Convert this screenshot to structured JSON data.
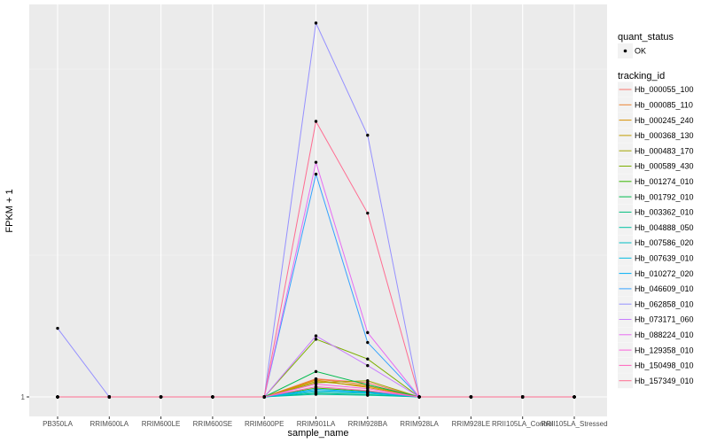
{
  "chart_data": {
    "type": "line",
    "xlabel": "sample_name",
    "ylabel": "FPKM + 1",
    "y_tick_labels": [
      {
        "value": 1,
        "label": "1"
      }
    ],
    "ylim": [
      1,
      1134
    ],
    "grid": true,
    "legend_placement": "right",
    "categories": [
      "PB350LA",
      "RRIM600LA",
      "RRIM600LE",
      "RRIM600SE",
      "RRIM600PE",
      "RRIM901LA",
      "RRIM928BA",
      "RRIM928LA",
      "RRIM928LE",
      "RRII105LA_Control",
      "RRII105LA_Stressed"
    ],
    "legend_quant": {
      "title": "quant_status",
      "items": [
        "OK"
      ]
    },
    "legend_tracking": {
      "title": "tracking_id"
    },
    "series": [
      {
        "name": "Hb_000055_100",
        "color": "#F8766D",
        "values": [
          1,
          1,
          1,
          1,
          1,
          56,
          44,
          1,
          1,
          1,
          1
        ]
      },
      {
        "name": "Hb_000085_110",
        "color": "#EA8331",
        "values": [
          1,
          1,
          1,
          1,
          1,
          55,
          38,
          1,
          1,
          1,
          1
        ]
      },
      {
        "name": "Hb_000245_240",
        "color": "#D89000",
        "values": [
          1,
          1,
          1,
          1,
          1,
          52,
          30,
          1,
          1,
          1,
          1
        ]
      },
      {
        "name": "Hb_000368_130",
        "color": "#C09B00",
        "values": [
          1,
          1,
          1,
          1,
          1,
          48,
          34,
          1,
          1,
          1,
          1
        ]
      },
      {
        "name": "Hb_000483_170",
        "color": "#A3A500",
        "values": [
          1,
          1,
          1,
          1,
          1,
          44,
          50,
          1,
          1,
          1,
          1
        ]
      },
      {
        "name": "Hb_000589_430",
        "color": "#7CAE00",
        "values": [
          1,
          1,
          1,
          1,
          1,
          176,
          116,
          1,
          1,
          1,
          1
        ]
      },
      {
        "name": "Hb_001274_010",
        "color": "#39B600",
        "values": [
          1,
          1,
          1,
          1,
          1,
          28,
          18,
          1,
          1,
          1,
          1
        ]
      },
      {
        "name": "Hb_001792_010",
        "color": "#00BB4E",
        "values": [
          1,
          1,
          1,
          1,
          1,
          78,
          38,
          1,
          1,
          1,
          1
        ]
      },
      {
        "name": "Hb_003362_010",
        "color": "#00BF7D",
        "values": [
          1,
          1,
          1,
          1,
          1,
          12,
          8,
          1,
          1,
          1,
          1
        ]
      },
      {
        "name": "Hb_004888_050",
        "color": "#00C1A3",
        "values": [
          1,
          1,
          1,
          1,
          1,
          9,
          6,
          1,
          1,
          1,
          1
        ]
      },
      {
        "name": "Hb_007586_020",
        "color": "#00BFC4",
        "values": [
          1,
          1,
          1,
          1,
          1,
          16,
          12,
          1,
          1,
          1,
          1
        ]
      },
      {
        "name": "Hb_007639_010",
        "color": "#00BAE0",
        "values": [
          1,
          1,
          1,
          1,
          1,
          20,
          14,
          1,
          1,
          1,
          1
        ]
      },
      {
        "name": "Hb_010272_020",
        "color": "#00B0F6",
        "values": [
          1,
          1,
          1,
          1,
          1,
          24,
          16,
          1,
          1,
          1,
          1
        ]
      },
      {
        "name": "Hb_046609_010",
        "color": "#35A2FF",
        "values": [
          1,
          1,
          1,
          1,
          1,
          676,
          166,
          1,
          1,
          1,
          1
        ]
      },
      {
        "name": "Hb_062858_010",
        "color": "#9590FF",
        "values": [
          209,
          1,
          1,
          1,
          1,
          1134,
          794,
          1,
          1,
          1,
          1
        ]
      },
      {
        "name": "Hb_073171_060",
        "color": "#C77CFF",
        "values": [
          1,
          1,
          1,
          1,
          1,
          186,
          96,
          1,
          1,
          1,
          1
        ]
      },
      {
        "name": "Hb_088224_010",
        "color": "#E76BF3",
        "values": [
          1,
          1,
          1,
          1,
          1,
          712,
          196,
          1,
          1,
          1,
          1
        ]
      },
      {
        "name": "Hb_129358_010",
        "color": "#FA62DB",
        "values": [
          1,
          1,
          1,
          1,
          1,
          40,
          26,
          1,
          1,
          1,
          1
        ]
      },
      {
        "name": "Hb_150498_010",
        "color": "#FF62BC",
        "values": [
          1,
          1,
          1,
          1,
          1,
          32,
          20,
          1,
          1,
          1,
          1
        ]
      },
      {
        "name": "Hb_157349_010",
        "color": "#FF6C91",
        "values": [
          1,
          1,
          1,
          1,
          1,
          836,
          558,
          1,
          1,
          1,
          1
        ]
      }
    ]
  }
}
